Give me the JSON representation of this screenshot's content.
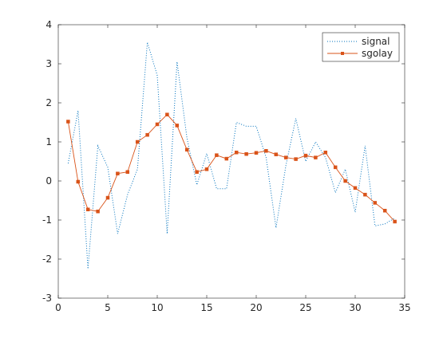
{
  "chart_data": {
    "type": "line",
    "xlim": [
      0,
      35
    ],
    "ylim": [
      -3,
      4
    ],
    "x_ticks": [
      0,
      5,
      10,
      15,
      20,
      25,
      30,
      35
    ],
    "y_ticks": [
      -3,
      -2,
      -1,
      0,
      1,
      2,
      3,
      4
    ],
    "x_tick_labels": [
      "0",
      "5",
      "10",
      "15",
      "20",
      "25",
      "30",
      "35"
    ],
    "y_tick_labels": [
      "-3",
      "-2",
      "-1",
      "0",
      "1",
      "2",
      "3",
      "4"
    ],
    "grid": false,
    "legend_position": "top-right",
    "series": [
      {
        "name": "signal",
        "color": "#0072BD",
        "line_style": "dotted",
        "marker": "none",
        "x": [
          1,
          2,
          3,
          4,
          5,
          6,
          7,
          8,
          9,
          10,
          11,
          12,
          13,
          14,
          15,
          16,
          17,
          18,
          19,
          20,
          21,
          22,
          23,
          24,
          25,
          26,
          27,
          28,
          29,
          30,
          31,
          32,
          33,
          34
        ],
        "y": [
          0.45,
          1.8,
          -2.25,
          0.9,
          0.35,
          -1.35,
          -0.35,
          0.3,
          3.55,
          2.7,
          -1.35,
          3.05,
          1.1,
          -0.1,
          0.7,
          -0.2,
          -0.2,
          1.5,
          1.4,
          1.4,
          0.6,
          -1.2,
          0.4,
          1.6,
          0.5,
          1.0,
          0.6,
          -0.3,
          0.3,
          -0.8,
          0.9,
          -1.15,
          -1.1,
          -0.95
        ]
      },
      {
        "name": "sgolay",
        "color": "#D95319",
        "line_style": "solid",
        "marker": "square",
        "x": [
          1,
          2,
          3,
          4,
          5,
          6,
          7,
          8,
          9,
          10,
          11,
          12,
          13,
          14,
          15,
          16,
          17,
          18,
          19,
          20,
          21,
          22,
          23,
          24,
          25,
          26,
          27,
          28,
          29,
          30,
          31,
          32,
          33,
          34
        ],
        "y": [
          1.52,
          -0.02,
          -0.73,
          -0.78,
          -0.43,
          0.19,
          0.23,
          1.0,
          1.18,
          1.45,
          1.7,
          1.42,
          0.8,
          0.23,
          0.3,
          0.66,
          0.57,
          0.73,
          0.69,
          0.72,
          0.77,
          0.68,
          0.6,
          0.56,
          0.65,
          0.6,
          0.73,
          0.35,
          0.0,
          -0.18,
          -0.35,
          -0.56,
          -0.76,
          -1.04
        ]
      }
    ]
  }
}
